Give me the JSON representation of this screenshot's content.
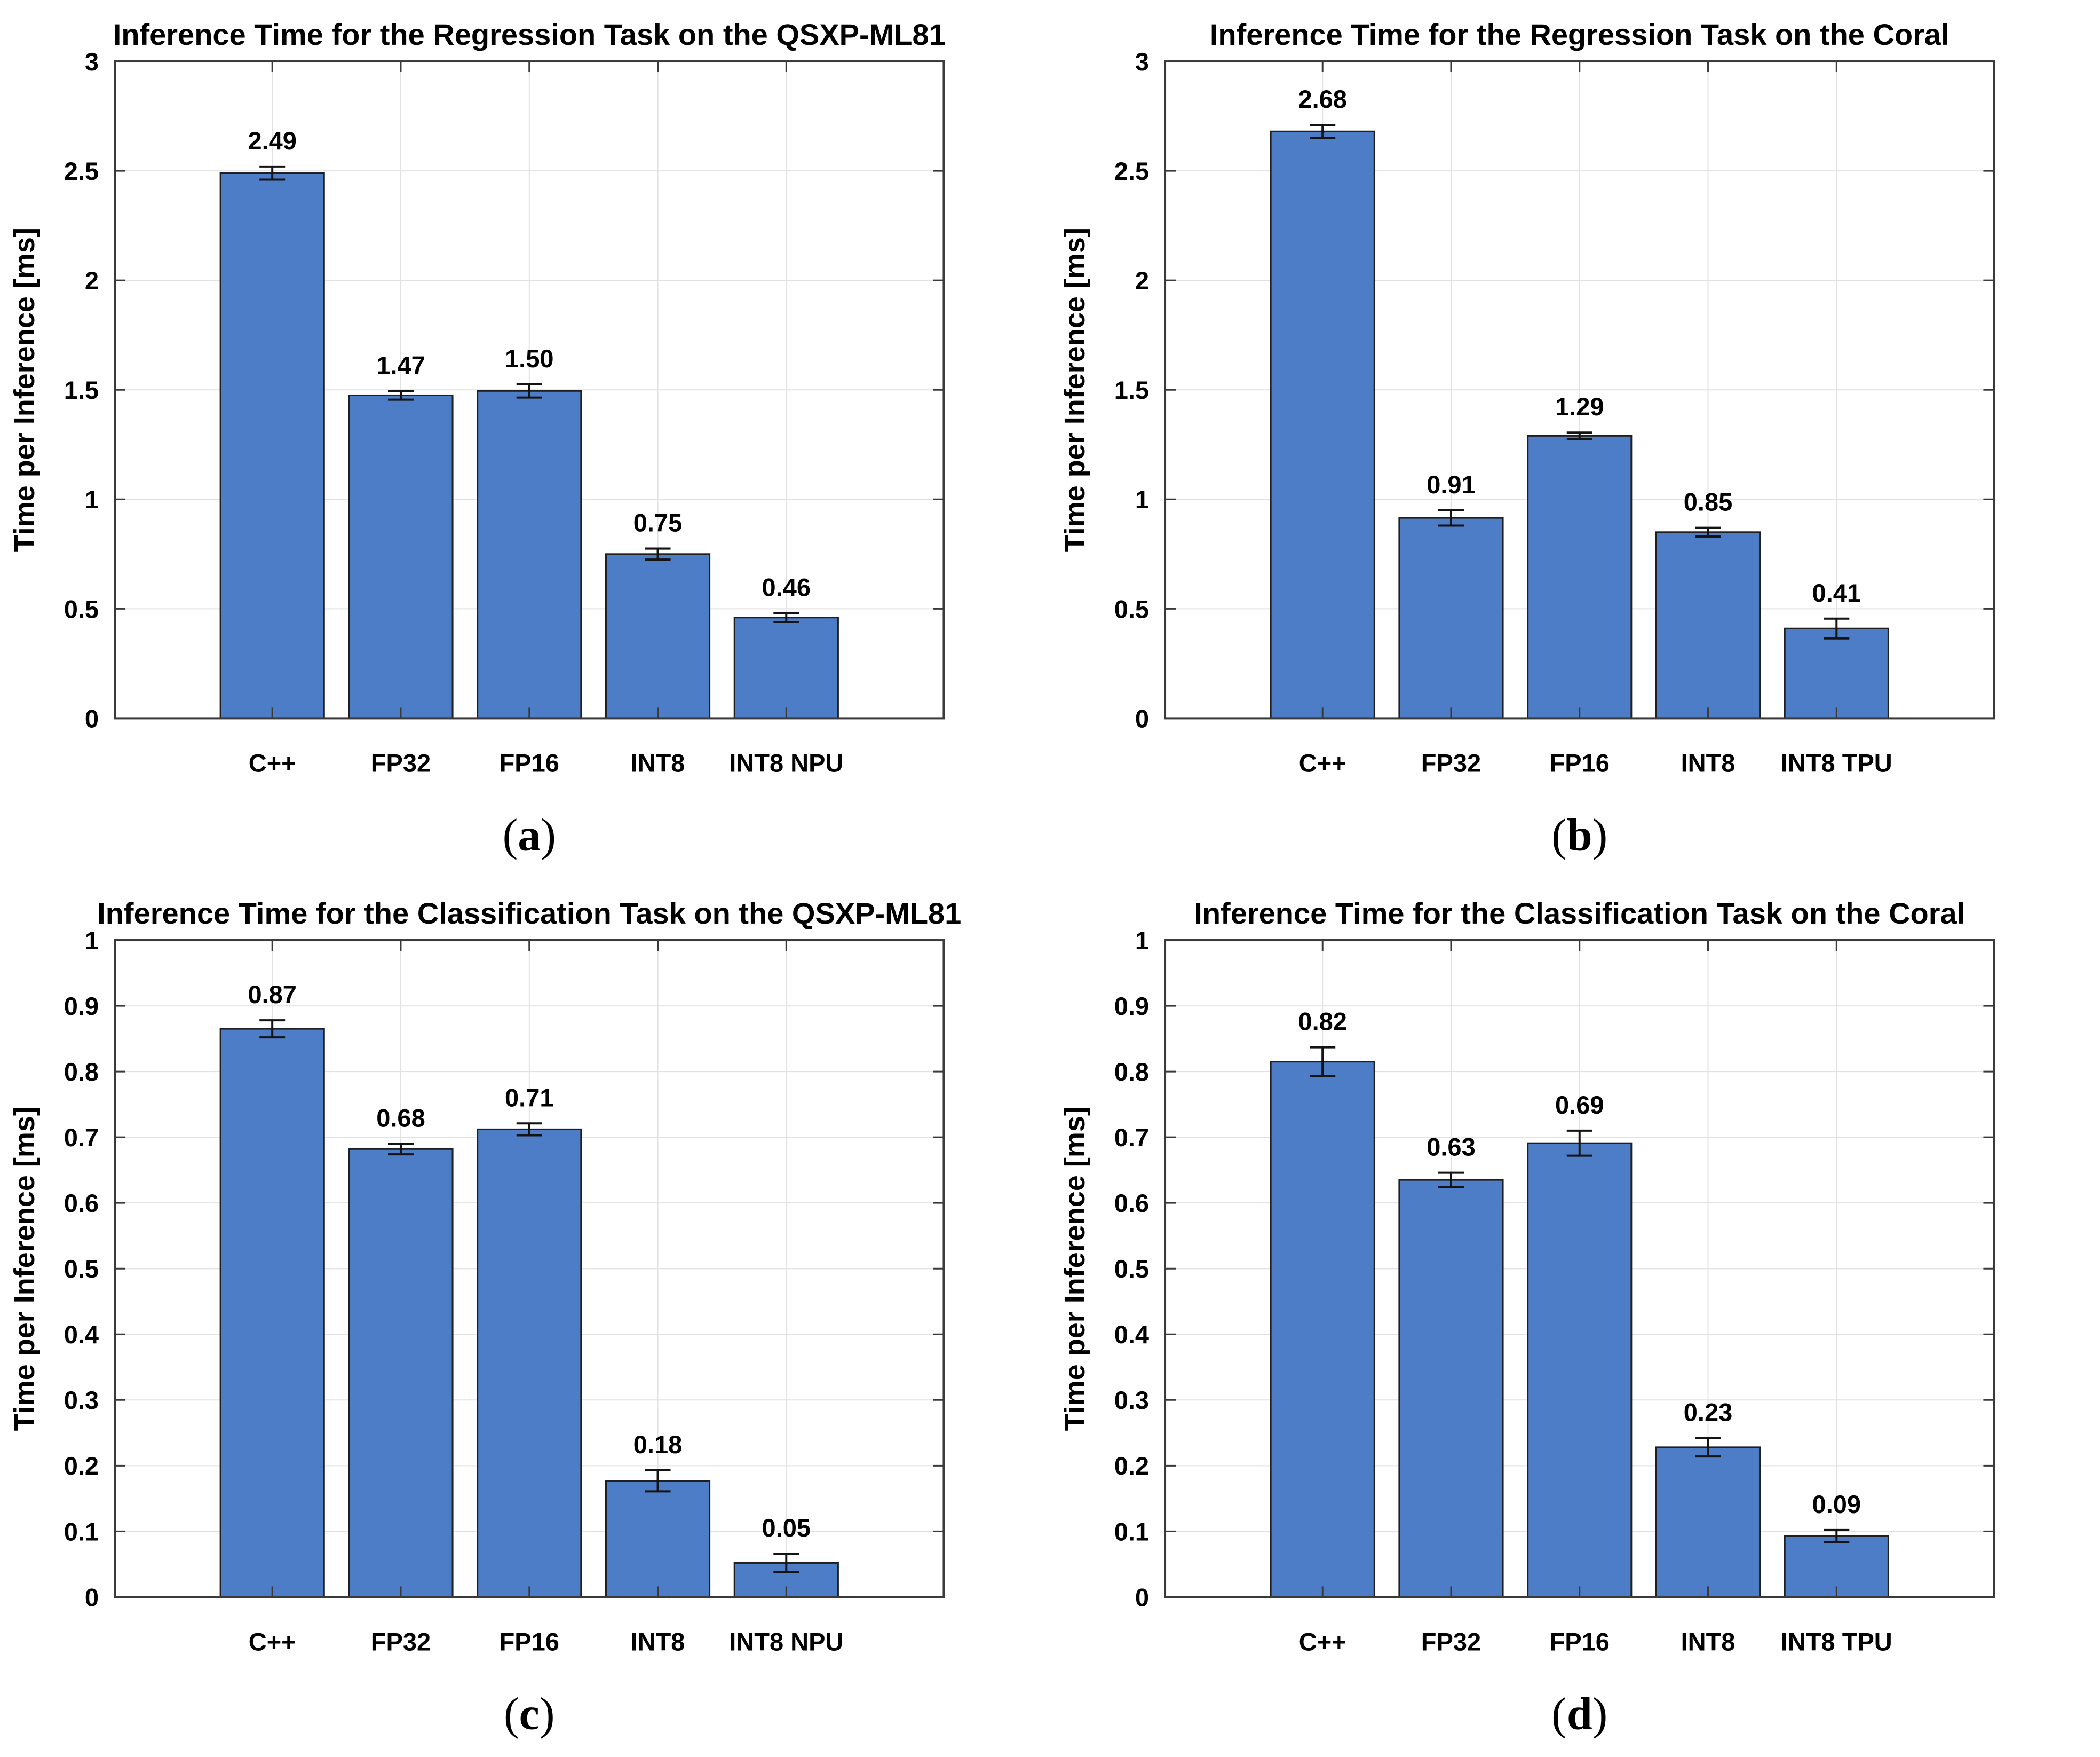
{
  "figure": {
    "background": "#ffffff",
    "style": {
      "bar_fill": "#4C7DC6",
      "bar_edge": "#1f1f1f",
      "grid_color": "#e2e2e2",
      "axis_color": "#3a3a3a",
      "error_color": "#141414",
      "text_color": "#000000",
      "title_fontsize": 56,
      "tick_fontsize": 47,
      "label_fontsize": 54,
      "value_fontsize": 47,
      "caption_fontsize": 86
    }
  },
  "chart_data": [
    {
      "type": "bar",
      "panel": "a",
      "title": "Inference Time for the Regression Task on the QSXP-ML81",
      "ylabel": "Time per Inference [ms]",
      "xlabel": "",
      "categories": [
        "C++",
        "FP32",
        "FP16",
        "INT8",
        "INT8 NPU"
      ],
      "values": [
        2.49,
        1.47,
        1.5,
        0.75,
        0.46
      ],
      "bar_heights": [
        2.49,
        1.475,
        1.495,
        0.75,
        0.46
      ],
      "value_labels": [
        "2.49",
        "1.47",
        "1.50",
        "0.75",
        "0.46"
      ],
      "errors": [
        0.03,
        0.02,
        0.03,
        0.025,
        0.02
      ],
      "ylim": [
        0,
        3
      ],
      "ytick_values": [
        0,
        0.5,
        1,
        1.5,
        2,
        2.5,
        3
      ],
      "ytick_labels": [
        "0",
        "0.5",
        "1",
        "1.5",
        "2",
        "2.5",
        "3"
      ],
      "grid": true,
      "legend": null,
      "caption": {
        "open": "(",
        "letter": "a",
        "close": ")"
      }
    },
    {
      "type": "bar",
      "panel": "b",
      "title": "Inference Time for the Regression Task on the Coral",
      "ylabel": "Time per Inference [ms]",
      "xlabel": "",
      "categories": [
        "C++",
        "FP32",
        "FP16",
        "INT8",
        "INT8 TPU"
      ],
      "values": [
        2.68,
        0.91,
        1.29,
        0.85,
        0.41
      ],
      "bar_heights": [
        2.68,
        0.915,
        1.29,
        0.85,
        0.41
      ],
      "value_labels": [
        "2.68",
        "0.91",
        "1.29",
        "0.85",
        "0.41"
      ],
      "errors": [
        0.03,
        0.035,
        0.015,
        0.02,
        0.045
      ],
      "ylim": [
        0,
        3
      ],
      "ytick_values": [
        0,
        0.5,
        1,
        1.5,
        2,
        2.5,
        3
      ],
      "ytick_labels": [
        "0",
        "0.5",
        "1",
        "1.5",
        "2",
        "2.5",
        "3"
      ],
      "grid": true,
      "legend": null,
      "caption": {
        "open": "(",
        "letter": "b",
        "close": ")"
      }
    },
    {
      "type": "bar",
      "panel": "c",
      "title": "Inference Time for the Classification Task on the QSXP-ML81",
      "ylabel": "Time per Inference [ms]",
      "xlabel": "",
      "categories": [
        "C++",
        "FP32",
        "FP16",
        "INT8",
        "INT8 NPU"
      ],
      "values": [
        0.87,
        0.68,
        0.71,
        0.18,
        0.05
      ],
      "bar_heights": [
        0.865,
        0.682,
        0.712,
        0.177,
        0.052
      ],
      "value_labels": [
        "0.87",
        "0.68",
        "0.71",
        "0.18",
        "0.05"
      ],
      "errors": [
        0.013,
        0.008,
        0.009,
        0.016,
        0.014
      ],
      "ylim": [
        0,
        1
      ],
      "ytick_values": [
        0,
        0.1,
        0.2,
        0.3,
        0.4,
        0.5,
        0.6,
        0.7,
        0.8,
        0.9,
        1
      ],
      "ytick_labels": [
        "0",
        "0.1",
        "0.2",
        "0.3",
        "0.4",
        "0.5",
        "0.6",
        "0.7",
        "0.8",
        "0.9",
        "1"
      ],
      "grid": true,
      "legend": null,
      "caption": {
        "open": "(",
        "letter": "c",
        "close": ")"
      }
    },
    {
      "type": "bar",
      "panel": "d",
      "title": "Inference Time for the Classification Task on the Coral",
      "ylabel": "Time per Inference [ms]",
      "xlabel": "",
      "categories": [
        "C++",
        "FP32",
        "FP16",
        "INT8",
        "INT8 TPU"
      ],
      "values": [
        0.82,
        0.63,
        0.69,
        0.23,
        0.09
      ],
      "bar_heights": [
        0.815,
        0.635,
        0.691,
        0.228,
        0.093
      ],
      "value_labels": [
        "0.82",
        "0.63",
        "0.69",
        "0.23",
        "0.09"
      ],
      "errors": [
        0.022,
        0.011,
        0.019,
        0.014,
        0.009
      ],
      "ylim": [
        0,
        1
      ],
      "ytick_values": [
        0,
        0.1,
        0.2,
        0.3,
        0.4,
        0.5,
        0.6,
        0.7,
        0.8,
        0.9,
        1
      ],
      "ytick_labels": [
        "0",
        "0.1",
        "0.2",
        "0.3",
        "0.4",
        "0.5",
        "0.6",
        "0.7",
        "0.8",
        "0.9",
        "1"
      ],
      "grid": true,
      "legend": null,
      "caption": {
        "open": "(",
        "letter": "d",
        "close": ")"
      }
    }
  ]
}
